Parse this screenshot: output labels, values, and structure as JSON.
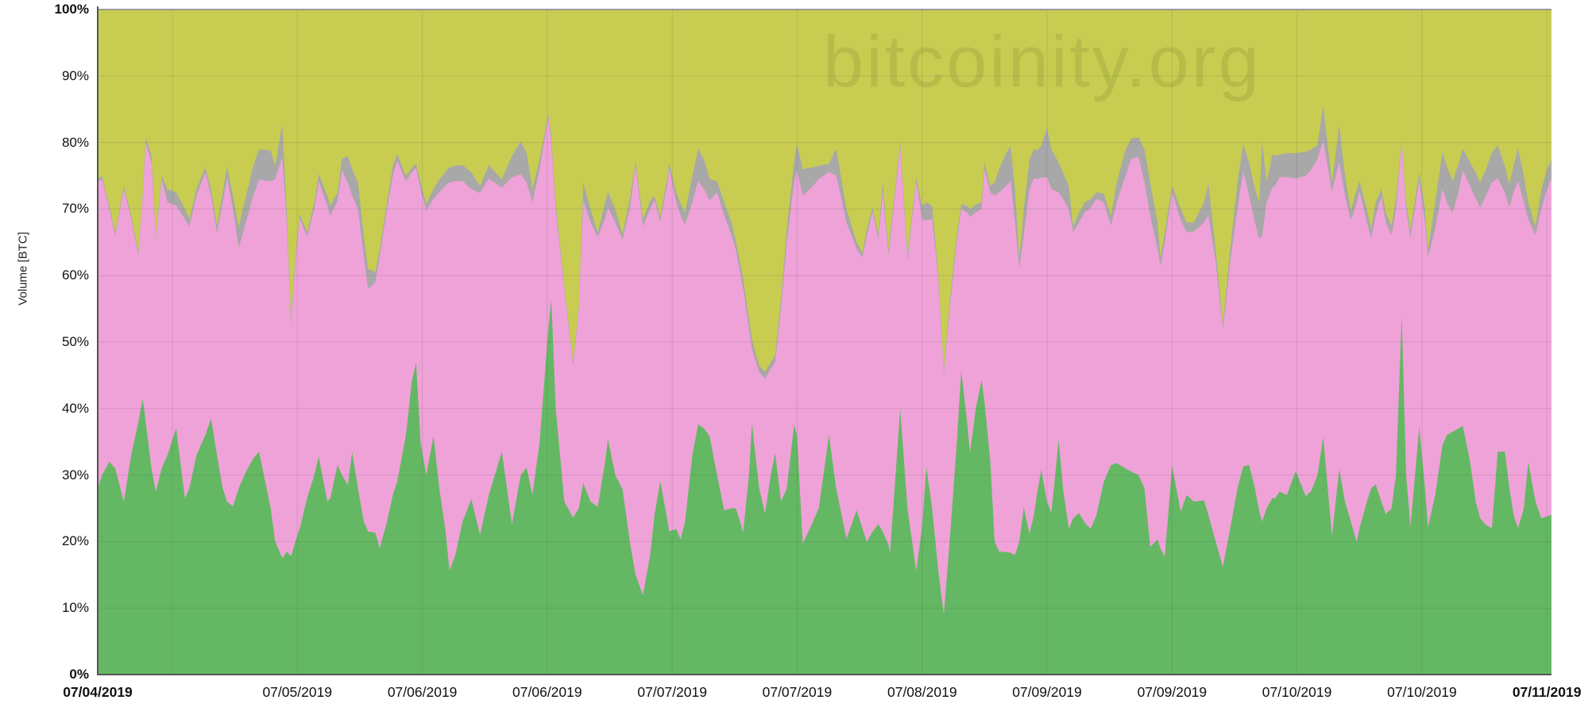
{
  "watermark": "bitcoinity.org",
  "y_axis": {
    "title": "Volume [BTC]",
    "ticks": [
      {
        "label": "100%",
        "value": 100,
        "bold": true
      },
      {
        "label": "90%",
        "value": 90,
        "bold": false
      },
      {
        "label": "80%",
        "value": 80,
        "bold": false
      },
      {
        "label": "70%",
        "value": 70,
        "bold": false
      },
      {
        "label": "60%",
        "value": 60,
        "bold": false
      },
      {
        "label": "50%",
        "value": 50,
        "bold": false
      },
      {
        "label": "40%",
        "value": 40,
        "bold": false
      },
      {
        "label": "30%",
        "value": 30,
        "bold": false
      },
      {
        "label": "20%",
        "value": 20,
        "bold": false
      },
      {
        "label": "10%",
        "value": 10,
        "bold": false
      },
      {
        "label": "0%",
        "value": 0,
        "bold": true
      }
    ]
  },
  "x_axis": {
    "start_label": {
      "label": "07/04/2019",
      "f": 0.0,
      "bold": true
    },
    "ticks": [
      {
        "f": 0.0514,
        "label": ""
      },
      {
        "f": 0.1373,
        "label": "07/05/2019",
        "bold": false
      },
      {
        "f": 0.2233,
        "label": "07/06/2019",
        "bold": false
      },
      {
        "f": 0.3092,
        "label": "07/06/2019",
        "bold": false
      },
      {
        "f": 0.3952,
        "label": "07/07/2019",
        "bold": false
      },
      {
        "f": 0.4811,
        "label": "07/07/2019",
        "bold": false
      },
      {
        "f": 0.5671,
        "label": "07/08/2019",
        "bold": false
      },
      {
        "f": 0.653,
        "label": "07/09/2019",
        "bold": false
      },
      {
        "f": 0.739,
        "label": "07/09/2019",
        "bold": false
      },
      {
        "f": 0.8249,
        "label": "07/10/2019",
        "bold": false
      },
      {
        "f": 0.9109,
        "label": "07/10/2019",
        "bold": false
      },
      {
        "f": 0.9968,
        "label": "07/11/2019",
        "bold": true
      }
    ]
  },
  "chart_data": {
    "type": "area",
    "stacked_percent": true,
    "title": "",
    "xlabel": "",
    "ylabel": "Volume [BTC]",
    "ylim": [
      0,
      100
    ],
    "x_range": [
      "07/04/2019",
      "07/11/2019"
    ],
    "grid": true,
    "legend": "none",
    "series_meaning": "tuples are [x_fraction, green_top_pct, pink_top_pct, gray_top_pct]; olive fills remainder to 100%",
    "colors": {
      "green": "#64b863",
      "pink": "#efa2d8",
      "gray": "#a8a8a8",
      "olive": "#c8cd52",
      "grid": "rgba(60,60,60,0.14)",
      "axis": "#555555",
      "top_line": "#9a9a9a"
    },
    "points": [
      [
        0.0,
        28,
        74,
        74.5
      ],
      [
        0.003,
        30,
        74.5,
        75
      ],
      [
        0.008,
        32,
        70,
        70.5
      ],
      [
        0.012,
        31,
        66,
        66.5
      ],
      [
        0.018,
        26,
        73,
        73.5
      ],
      [
        0.023,
        33,
        68.5,
        69
      ],
      [
        0.028,
        38,
        63,
        63.5
      ],
      [
        0.031,
        41.5,
        72,
        72.5
      ],
      [
        0.033,
        38,
        80,
        80.7
      ],
      [
        0.037,
        31,
        77,
        78
      ],
      [
        0.04,
        27.5,
        65.5,
        66
      ],
      [
        0.044,
        31,
        74.5,
        75
      ],
      [
        0.048,
        33,
        71,
        73
      ],
      [
        0.054,
        37,
        70.5,
        72.5
      ],
      [
        0.06,
        26.5,
        68.5,
        70
      ],
      [
        0.063,
        28,
        67.4,
        68.5
      ],
      [
        0.068,
        33,
        72,
        73
      ],
      [
        0.074,
        36,
        75.5,
        76.3
      ],
      [
        0.078,
        38.5,
        72,
        73
      ],
      [
        0.082,
        33,
        66.4,
        67.5
      ],
      [
        0.086,
        28,
        71,
        72.5
      ],
      [
        0.089,
        26,
        74.6,
        76.4
      ],
      [
        0.093,
        25.3,
        70,
        72
      ],
      [
        0.097,
        28,
        64.2,
        67.4
      ],
      [
        0.102,
        30.5,
        68,
        72
      ],
      [
        0.107,
        32.5,
        72,
        76.5
      ],
      [
        0.111,
        33.5,
        74.4,
        79
      ],
      [
        0.119,
        25,
        74.2,
        78.8
      ],
      [
        0.122,
        20,
        74.5,
        76.5
      ],
      [
        0.127,
        17.5,
        77.8,
        82.7
      ],
      [
        0.13,
        18.5,
        68,
        70
      ],
      [
        0.133,
        17.8,
        52.5,
        53.5
      ],
      [
        0.136,
        20,
        62,
        62.8
      ],
      [
        0.139,
        22,
        68.6,
        69.3
      ],
      [
        0.144,
        26.5,
        65.8,
        66.5
      ],
      [
        0.149,
        30,
        70,
        71
      ],
      [
        0.152,
        32.8,
        74.2,
        75.3
      ],
      [
        0.158,
        26,
        70.5,
        72
      ],
      [
        0.16,
        26.5,
        69,
        70.5
      ],
      [
        0.165,
        31.5,
        71.2,
        72.5
      ],
      [
        0.168,
        30,
        75.8,
        77.5
      ],
      [
        0.172,
        28.5,
        74,
        78
      ],
      [
        0.175,
        33.5,
        72,
        76
      ],
      [
        0.179,
        28,
        70,
        74
      ],
      [
        0.183,
        23,
        63,
        66
      ],
      [
        0.186,
        21.5,
        58,
        61
      ],
      [
        0.191,
        21.3,
        59,
        60.5
      ],
      [
        0.194,
        19,
        63,
        64
      ],
      [
        0.199,
        23,
        70,
        71
      ],
      [
        0.203,
        27,
        75,
        76.5
      ],
      [
        0.206,
        29,
        77.3,
        78.3
      ],
      [
        0.212,
        36,
        74.2,
        75
      ],
      [
        0.216,
        44,
        75.5,
        76.2
      ],
      [
        0.219,
        46.9,
        76.2,
        76.8
      ],
      [
        0.222,
        35,
        73,
        74
      ],
      [
        0.226,
        30,
        69.8,
        70.8
      ],
      [
        0.231,
        35.9,
        71.5,
        73
      ],
      [
        0.235,
        28,
        72.5,
        74.5
      ],
      [
        0.239,
        22,
        73.5,
        75.5
      ],
      [
        0.242,
        15.6,
        74,
        76.3
      ],
      [
        0.246,
        18,
        74.2,
        76.5
      ],
      [
        0.251,
        23,
        74.2,
        76.6
      ],
      [
        0.257,
        26.4,
        73,
        75.5
      ],
      [
        0.263,
        21,
        72.4,
        73.5
      ],
      [
        0.269,
        27,
        74.6,
        76.6
      ],
      [
        0.278,
        33.5,
        73.2,
        74.5
      ],
      [
        0.285,
        22.6,
        74.8,
        78
      ],
      [
        0.291,
        30,
        75.2,
        80.2
      ],
      [
        0.295,
        31.1,
        74,
        78.5
      ],
      [
        0.299,
        27,
        71,
        73
      ],
      [
        0.304,
        35,
        76,
        77.5
      ],
      [
        0.31,
        52,
        83.9,
        84.3
      ],
      [
        0.312,
        56.4,
        80,
        81
      ],
      [
        0.315,
        40,
        70,
        71
      ],
      [
        0.321,
        26,
        58,
        58.5
      ],
      [
        0.327,
        23.6,
        46.4,
        47
      ],
      [
        0.331,
        25,
        55,
        55.5
      ],
      [
        0.334,
        28.8,
        71.3,
        74
      ],
      [
        0.339,
        26,
        68,
        70
      ],
      [
        0.344,
        25.2,
        65.8,
        66.5
      ],
      [
        0.349,
        32,
        68.5,
        71
      ],
      [
        0.351,
        35.4,
        70.2,
        72.6
      ],
      [
        0.356,
        30,
        68,
        70
      ],
      [
        0.361,
        27.9,
        65.4,
        66.2
      ],
      [
        0.366,
        20,
        70,
        71.5
      ],
      [
        0.37,
        15,
        76.5,
        77.2
      ],
      [
        0.375,
        11.9,
        67.4,
        68.5
      ],
      [
        0.38,
        18,
        70,
        71.2
      ],
      [
        0.383,
        24,
        71.3,
        72
      ],
      [
        0.387,
        29.1,
        68,
        68.8
      ],
      [
        0.392,
        23,
        74,
        75
      ],
      [
        0.393,
        21.5,
        76.2,
        77
      ],
      [
        0.398,
        21.9,
        71,
        72.5
      ],
      [
        0.401,
        20.3,
        69,
        70.9
      ],
      [
        0.404,
        23,
        67.6,
        69.5
      ],
      [
        0.409,
        33,
        71,
        75
      ],
      [
        0.413,
        37.6,
        74.2,
        79.1
      ],
      [
        0.417,
        37,
        73,
        77.5
      ],
      [
        0.421,
        35.8,
        71.3,
        74.5
      ],
      [
        0.426,
        30,
        72.5,
        74.2
      ],
      [
        0.431,
        24.7,
        69,
        71
      ],
      [
        0.436,
        25,
        66,
        68
      ],
      [
        0.439,
        25,
        63.8,
        65.2
      ],
      [
        0.444,
        21.4,
        58,
        59.5
      ],
      [
        0.448,
        30,
        52,
        53.5
      ],
      [
        0.45,
        37.8,
        49,
        50.5
      ],
      [
        0.455,
        28,
        45.5,
        46.5
      ],
      [
        0.459,
        24.2,
        44.5,
        45.5
      ],
      [
        0.463,
        30,
        46,
        47
      ],
      [
        0.466,
        33.3,
        47,
        48
      ],
      [
        0.47,
        26,
        55,
        56.5
      ],
      [
        0.474,
        28,
        65,
        67
      ],
      [
        0.479,
        37.5,
        74,
        77
      ],
      [
        0.481,
        36,
        75.8,
        79.8
      ],
      [
        0.485,
        19.7,
        72,
        76
      ],
      [
        0.49,
        22,
        73,
        76.2
      ],
      [
        0.496,
        25,
        74.5,
        76.5
      ],
      [
        0.503,
        36,
        75.6,
        76.8
      ],
      [
        0.508,
        28,
        75,
        79.1
      ],
      [
        0.515,
        20.4,
        68,
        70
      ],
      [
        0.522,
        24.7,
        64,
        65
      ],
      [
        0.526,
        22,
        62.7,
        63.4
      ],
      [
        0.529,
        19.9,
        66,
        67
      ],
      [
        0.533,
        21.5,
        69.6,
        70.2
      ],
      [
        0.537,
        22.6,
        65.5,
        66.2
      ],
      [
        0.54,
        21.5,
        72.6,
        74
      ],
      [
        0.544,
        19.5,
        62.9,
        63.8
      ],
      [
        0.545,
        18.2,
        65,
        66
      ],
      [
        0.552,
        39.9,
        79.5,
        80.2
      ],
      [
        0.557,
        25,
        62,
        63
      ],
      [
        0.563,
        15.6,
        74.2,
        74.8
      ],
      [
        0.567,
        22,
        68.5,
        70.5
      ],
      [
        0.57,
        31.2,
        68.3,
        71
      ],
      [
        0.574,
        25,
        68.5,
        70.5
      ],
      [
        0.578,
        16,
        60,
        61
      ],
      [
        0.582,
        9,
        45.2,
        46
      ],
      [
        0.586,
        20,
        55,
        56
      ],
      [
        0.591,
        35,
        65,
        66
      ],
      [
        0.594,
        45.7,
        70,
        70.8
      ],
      [
        0.598,
        38,
        69.5,
        70.5
      ],
      [
        0.6,
        33.3,
        68.8,
        70
      ],
      [
        0.604,
        40,
        69.5,
        70.7
      ],
      [
        0.608,
        44.3,
        70,
        71
      ],
      [
        0.61,
        41,
        76,
        77
      ],
      [
        0.614,
        32,
        72.5,
        73.5
      ],
      [
        0.617,
        20,
        72,
        74
      ],
      [
        0.62,
        18.5,
        72.5,
        76
      ],
      [
        0.625,
        18.4,
        73.5,
        78.5
      ],
      [
        0.628,
        18.3,
        74.2,
        79.4
      ],
      [
        0.631,
        18,
        68,
        73
      ],
      [
        0.634,
        20,
        61,
        62.7
      ],
      [
        0.637,
        25.1,
        66,
        70
      ],
      [
        0.641,
        21.2,
        73,
        77.5
      ],
      [
        0.644,
        24,
        74.6,
        79
      ],
      [
        0.646,
        27,
        74.5,
        78.8
      ],
      [
        0.649,
        30.8,
        74.7,
        79.5
      ],
      [
        0.653,
        26,
        74.8,
        82.2
      ],
      [
        0.656,
        24.3,
        73,
        79
      ],
      [
        0.661,
        35.3,
        72.5,
        77
      ],
      [
        0.664,
        28,
        71.5,
        75.5
      ],
      [
        0.668,
        21.9,
        70,
        73.5
      ],
      [
        0.671,
        23.5,
        66.5,
        67.4
      ],
      [
        0.675,
        24.3,
        68,
        69.5
      ],
      [
        0.679,
        22.8,
        69.5,
        71
      ],
      [
        0.683,
        21.9,
        70.2,
        71.5
      ],
      [
        0.687,
        24,
        71.5,
        72.5
      ],
      [
        0.692,
        29,
        71,
        72.3
      ],
      [
        0.697,
        31.5,
        67.5,
        69
      ],
      [
        0.701,
        31.8,
        71,
        74
      ],
      [
        0.707,
        31,
        75,
        79
      ],
      [
        0.711,
        30.5,
        77.6,
        80.6
      ],
      [
        0.716,
        30,
        77.8,
        80.8
      ],
      [
        0.72,
        28,
        74,
        79
      ],
      [
        0.724,
        19.2,
        69,
        74
      ],
      [
        0.729,
        20.3,
        64,
        68
      ],
      [
        0.731,
        19,
        61.4,
        62.7
      ],
      [
        0.734,
        17.7,
        65,
        66.5
      ],
      [
        0.739,
        31.4,
        72.6,
        73.5
      ],
      [
        0.745,
        24.5,
        68.3,
        70
      ],
      [
        0.749,
        27,
        66.5,
        68
      ],
      [
        0.754,
        26,
        66.6,
        68
      ],
      [
        0.761,
        26.2,
        68,
        71
      ],
      [
        0.764,
        24,
        69,
        73.8
      ],
      [
        0.769,
        20,
        62,
        64
      ],
      [
        0.774,
        16.2,
        51.9,
        52.8
      ],
      [
        0.779,
        22,
        62,
        64
      ],
      [
        0.784,
        28,
        70,
        74
      ],
      [
        0.788,
        31.3,
        75.7,
        79.8
      ],
      [
        0.792,
        31.5,
        72,
        77
      ],
      [
        0.796,
        28,
        68,
        73
      ],
      [
        0.799,
        24.5,
        65.5,
        71
      ],
      [
        0.801,
        23,
        66,
        80.2
      ],
      [
        0.804,
        25,
        71,
        74
      ],
      [
        0.808,
        26.5,
        73.2,
        78.2
      ],
      [
        0.81,
        26.5,
        73.5,
        78
      ],
      [
        0.813,
        27.5,
        74.8,
        78.2
      ],
      [
        0.818,
        27,
        74.8,
        78.4
      ],
      [
        0.824,
        30.6,
        74.6,
        78.4
      ],
      [
        0.831,
        26.8,
        75,
        78.6
      ],
      [
        0.835,
        27.7,
        76,
        79
      ],
      [
        0.839,
        30,
        77.5,
        79.6
      ],
      [
        0.843,
        35.7,
        80.2,
        85.6
      ],
      [
        0.849,
        20.8,
        72.6,
        74
      ],
      [
        0.854,
        30.9,
        77.1,
        82.7
      ],
      [
        0.858,
        26,
        72,
        75
      ],
      [
        0.862,
        23,
        68.3,
        69.7
      ],
      [
        0.866,
        19.9,
        71,
        73
      ],
      [
        0.868,
        22,
        72.6,
        74.2
      ],
      [
        0.873,
        26,
        68,
        70
      ],
      [
        0.876,
        28,
        65.6,
        67
      ],
      [
        0.879,
        28.6,
        69,
        71
      ],
      [
        0.883,
        26,
        71.8,
        73
      ],
      [
        0.886,
        24.1,
        68,
        69.5
      ],
      [
        0.89,
        25,
        66,
        67.5
      ],
      [
        0.893,
        30,
        70,
        71.5
      ],
      [
        0.897,
        54,
        80,
        80.5
      ],
      [
        0.9,
        30,
        70,
        71
      ],
      [
        0.903,
        22.2,
        65.6,
        67
      ],
      [
        0.909,
        37.2,
        74.4,
        75.5
      ],
      [
        0.913,
        28,
        68,
        70
      ],
      [
        0.915,
        22.1,
        62.7,
        63.9
      ],
      [
        0.92,
        27,
        67,
        71
      ],
      [
        0.925,
        34.5,
        73,
        78.6
      ],
      [
        0.928,
        36,
        71,
        76.5
      ],
      [
        0.932,
        36.5,
        69.4,
        74.2
      ],
      [
        0.936,
        37,
        72.5,
        76.8
      ],
      [
        0.939,
        37.4,
        75.8,
        79.1
      ],
      [
        0.944,
        32,
        73.5,
        77
      ],
      [
        0.948,
        25.9,
        71.5,
        75.5
      ],
      [
        0.951,
        23.5,
        70.2,
        74
      ],
      [
        0.955,
        22.5,
        72,
        76
      ],
      [
        0.959,
        22,
        74,
        78.5
      ],
      [
        0.963,
        33.5,
        74.6,
        79.6
      ],
      [
        0.968,
        33.5,
        72.5,
        76.5
      ],
      [
        0.971,
        28,
        70.2,
        73.7
      ],
      [
        0.974,
        24,
        72.5,
        76.5
      ],
      [
        0.977,
        22,
        74.2,
        79.2
      ],
      [
        0.981,
        25,
        71,
        75
      ],
      [
        0.984,
        32,
        68.5,
        71
      ],
      [
        0.989,
        26,
        66,
        67.4
      ],
      [
        0.993,
        23.5,
        70,
        73
      ],
      [
        0.997,
        23.8,
        73,
        76
      ],
      [
        1.0,
        24,
        74.5,
        77.5
      ]
    ]
  }
}
